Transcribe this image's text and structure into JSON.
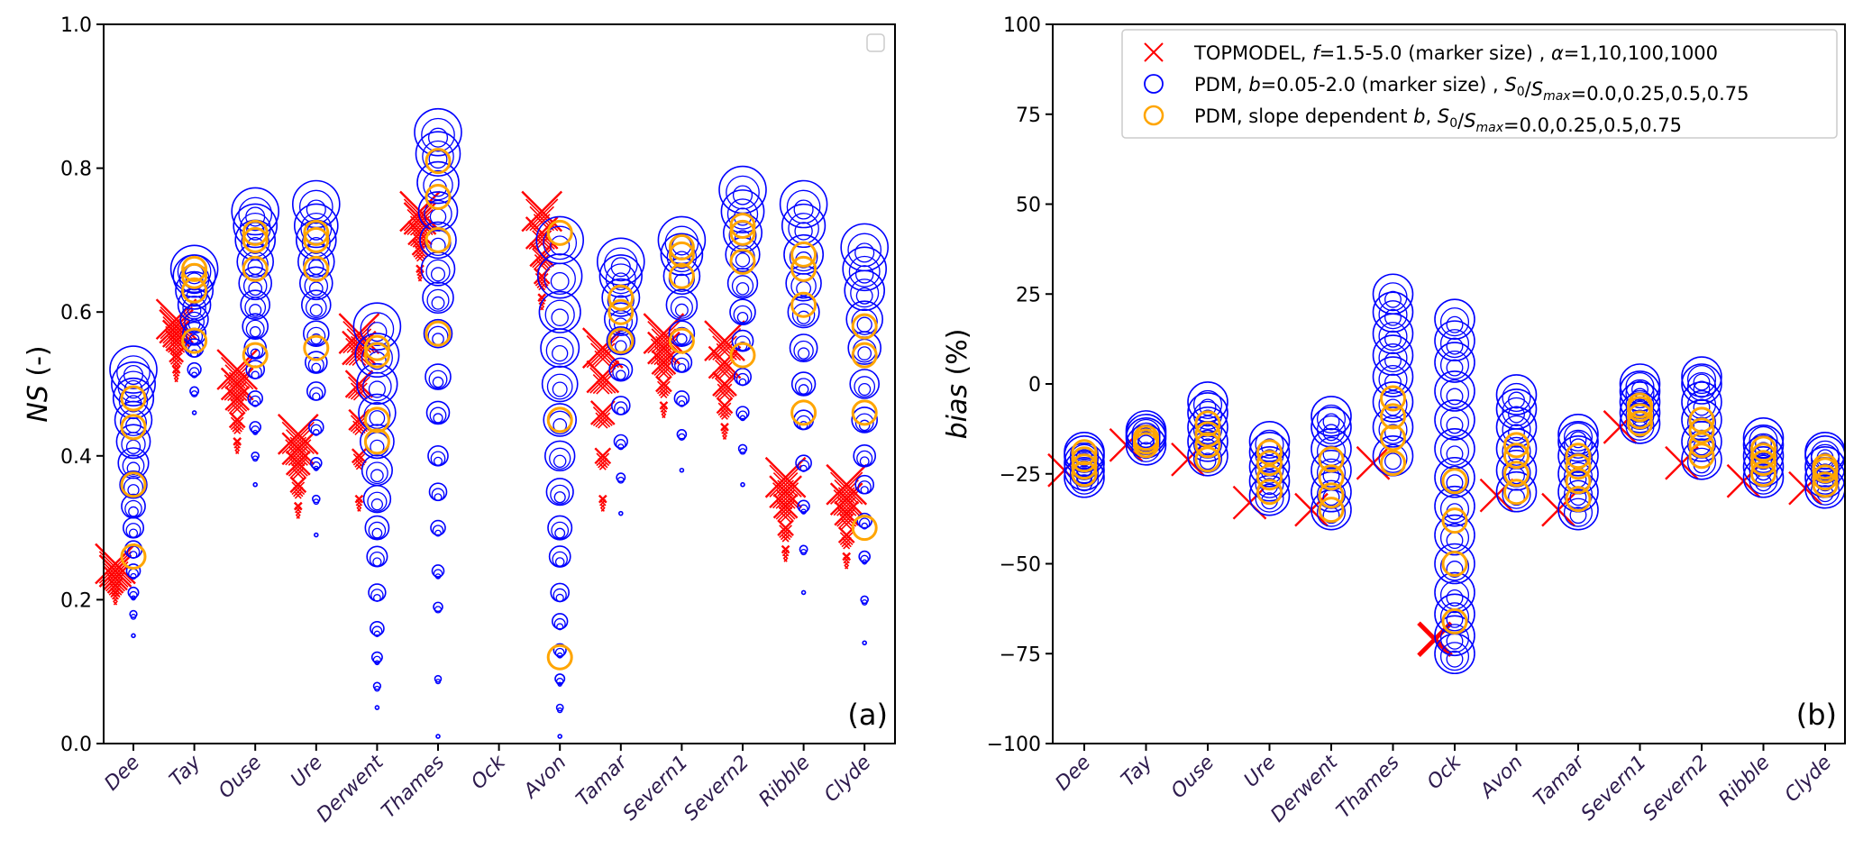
{
  "chart_data": [
    {
      "id": "panel-a",
      "type": "scatter",
      "panel_label": "(a)",
      "ylabel_italic": "NS",
      "ylabel_rest": " (-)",
      "ylim": [
        0.0,
        1.0
      ],
      "yticks": [
        0.0,
        0.2,
        0.4,
        0.6,
        0.8,
        1.0
      ],
      "ytick_labels": [
        "0.0",
        "0.2",
        "0.4",
        "0.6",
        "0.8",
        "1.0"
      ],
      "categories": [
        "Dee",
        "Tay",
        "Ouse",
        "Ure",
        "Derwent",
        "Thames",
        "Ock",
        "Avon",
        "Tamar",
        "Severn1",
        "Severn2",
        "Ribble",
        "Clyde"
      ],
      "legend": "empty-box top-right",
      "series": [
        {
          "name": "TOPMODEL",
          "marker": "x",
          "color": "#ff0000",
          "values_by_category": {
            "Dee": [
              0.21,
              0.22,
              0.23,
              0.24,
              0.25
            ],
            "Tay": [
              0.52,
              0.54,
              0.56,
              0.57,
              0.58,
              0.59
            ],
            "Ouse": [
              0.42,
              0.45,
              0.48,
              0.5,
              0.52
            ],
            "Ure": [
              0.33,
              0.36,
              0.39,
              0.41,
              0.43
            ],
            "Derwent": [
              0.34,
              0.4,
              0.45,
              0.5,
              0.55,
              0.57
            ],
            "Thames": [
              0.66,
              0.69,
              0.71,
              0.73,
              0.74
            ],
            "Ock": [],
            "Avon": [
              0.62,
              0.65,
              0.68,
              0.71,
              0.74
            ],
            "Tamar": [
              0.34,
              0.4,
              0.46,
              0.51,
              0.55
            ],
            "Severn1": [
              0.47,
              0.5,
              0.53,
              0.55,
              0.57
            ],
            "Severn2": [
              0.44,
              0.47,
              0.5,
              0.53,
              0.56
            ],
            "Ribble": [
              0.27,
              0.3,
              0.33,
              0.35,
              0.37
            ],
            "Clyde": [
              0.26,
              0.29,
              0.32,
              0.34,
              0.36
            ]
          }
        },
        {
          "name": "PDM",
          "marker": "o",
          "color": "#0000ff",
          "values_by_category": {
            "Dee": [
              0.15,
              0.18,
              0.21,
              0.24,
              0.27,
              0.3,
              0.33,
              0.36,
              0.39,
              0.42,
              0.45,
              0.48,
              0.5,
              0.52
            ],
            "Tay": [
              0.46,
              0.49,
              0.52,
              0.55,
              0.57,
              0.59,
              0.61,
              0.63,
              0.65,
              0.66
            ],
            "Ouse": [
              0.36,
              0.4,
              0.44,
              0.48,
              0.52,
              0.55,
              0.58,
              0.61,
              0.64,
              0.67,
              0.7,
              0.72,
              0.74
            ],
            "Ure": [
              0.29,
              0.34,
              0.39,
              0.44,
              0.49,
              0.53,
              0.57,
              0.61,
              0.64,
              0.67,
              0.7,
              0.72,
              0.75
            ],
            "Derwent": [
              0.05,
              0.08,
              0.12,
              0.16,
              0.21,
              0.26,
              0.3,
              0.34,
              0.38,
              0.42,
              0.46,
              0.5,
              0.54,
              0.58
            ],
            "Thames": [
              0.01,
              0.09,
              0.19,
              0.24,
              0.3,
              0.35,
              0.4,
              0.46,
              0.51,
              0.57,
              0.62,
              0.66,
              0.7,
              0.74,
              0.78,
              0.82,
              0.85
            ],
            "Ock": [],
            "Avon": [
              0.01,
              0.05,
              0.09,
              0.13,
              0.17,
              0.21,
              0.26,
              0.3,
              0.35,
              0.4,
              0.45,
              0.5,
              0.55,
              0.6,
              0.65,
              0.7
            ],
            "Tamar": [
              0.32,
              0.37,
              0.42,
              0.47,
              0.52,
              0.56,
              0.59,
              0.62,
              0.65,
              0.67
            ],
            "Severn1": [
              0.38,
              0.43,
              0.48,
              0.53,
              0.57,
              0.61,
              0.65,
              0.68,
              0.7
            ],
            "Severn2": [
              0.36,
              0.41,
              0.46,
              0.51,
              0.56,
              0.6,
              0.64,
              0.68,
              0.71,
              0.74,
              0.77
            ],
            "Ribble": [
              0.21,
              0.27,
              0.33,
              0.39,
              0.45,
              0.5,
              0.55,
              0.6,
              0.64,
              0.68,
              0.72,
              0.75
            ],
            "Clyde": [
              0.14,
              0.2,
              0.26,
              0.31,
              0.36,
              0.4,
              0.45,
              0.5,
              0.55,
              0.59,
              0.63,
              0.66,
              0.69
            ]
          }
        },
        {
          "name": "PDM slope dependent b",
          "marker": "o",
          "color": "#ffa500",
          "values_by_category": {
            "Dee": [
              0.26,
              0.36,
              0.44,
              0.48
            ],
            "Tay": [
              0.56,
              0.63,
              0.65,
              0.66
            ],
            "Ouse": [
              0.54,
              0.66,
              0.7,
              0.71
            ],
            "Ure": [
              0.55,
              0.66,
              0.7,
              0.71
            ],
            "Derwent": [
              0.42,
              0.45,
              0.54,
              0.55
            ],
            "Thames": [
              0.57,
              0.7,
              0.76,
              0.81
            ],
            "Ock": [],
            "Avon": [
              0.12,
              0.45,
              0.71
            ],
            "Tamar": [
              0.56,
              0.6,
              0.62,
              0.62
            ],
            "Severn1": [
              0.56,
              0.65,
              0.68,
              0.69
            ],
            "Severn2": [
              0.54,
              0.67,
              0.71,
              0.72
            ],
            "Ribble": [
              0.46,
              0.61,
              0.66,
              0.68
            ],
            "Clyde": [
              0.3,
              0.46,
              0.54,
              0.58
            ]
          }
        }
      ]
    },
    {
      "id": "panel-b",
      "type": "scatter",
      "panel_label": "(b)",
      "ylabel_italic": "bias",
      "ylabel_rest": " (%)",
      "ylim": [
        -100,
        100
      ],
      "yticks": [
        -100,
        -75,
        -50,
        -25,
        0,
        25,
        50,
        75,
        100
      ],
      "ytick_labels": [
        "−100",
        "−75",
        "−50",
        "−25",
        "0",
        "25",
        "50",
        "75",
        "100"
      ],
      "categories": [
        "Dee",
        "Tay",
        "Ouse",
        "Ure",
        "Derwent",
        "Thames",
        "Ock",
        "Avon",
        "Tamar",
        "Severn1",
        "Severn2",
        "Ribble",
        "Clyde"
      ],
      "legend": "top-right",
      "series": [
        {
          "name": "TOPMODEL",
          "marker": "x",
          "color": "#ff0000",
          "values_by_category": {
            "Dee": [
              -24
            ],
            "Tay": [
              -17
            ],
            "Ouse": [
              -21
            ],
            "Ure": [
              -33
            ],
            "Derwent": [
              -35
            ],
            "Thames": [
              -22
            ],
            "Ock": [
              -71
            ],
            "Avon": [
              -31
            ],
            "Tamar": [
              -35
            ],
            "Severn1": [
              -12
            ],
            "Severn2": [
              -22
            ],
            "Ribble": [
              -27
            ],
            "Clyde": [
              -29
            ]
          }
        },
        {
          "name": "PDM",
          "marker": "o",
          "color": "#0000ff",
          "values_by_category": {
            "Dee": [
              -26,
              -24,
              -22,
              -20,
              -19
            ],
            "Tay": [
              -17,
              -15,
              -14,
              -13
            ],
            "Ouse": [
              -20,
              -16,
              -12,
              -8,
              -5
            ],
            "Ure": [
              -31,
              -27,
              -23,
              -19,
              -16
            ],
            "Derwent": [
              -35,
              -30,
              -24,
              -18,
              -12,
              -9
            ],
            "Thames": [
              -20,
              -12,
              -5,
              2,
              8,
              14,
              20,
              25
            ],
            "Ock": [
              -75,
              -70,
              -64,
              -58,
              -50,
              -42,
              -34,
              -26,
              -18,
              -10,
              -2,
              6,
              12,
              18
            ],
            "Avon": [
              -30,
              -24,
              -18,
              -12,
              -7,
              -3
            ],
            "Tamar": [
              -35,
              -30,
              -25,
              -20,
              -16,
              -14
            ],
            "Severn1": [
              -11,
              -8,
              -5,
              -2,
              0
            ],
            "Severn2": [
              -21,
              -16,
              -10,
              -5,
              0,
              2
            ],
            "Ribble": [
              -26,
              -23,
              -20,
              -17,
              -15
            ],
            "Clyde": [
              -29,
              -26,
              -23,
              -20,
              -19
            ]
          }
        },
        {
          "name": "PDM slope dependent b",
          "marker": "o",
          "color": "#ffa500",
          "values_by_category": {
            "Dee": [
              -25,
              -23,
              -21,
              -19
            ],
            "Tay": [
              -17,
              -16,
              -15,
              -15
            ],
            "Ouse": [
              -21,
              -17,
              -14,
              -11
            ],
            "Ure": [
              -30,
              -26,
              -22,
              -19
            ],
            "Derwent": [
              -35,
              -31,
              -26,
              -21
            ],
            "Thames": [
              -22,
              -15,
              -9,
              -4
            ],
            "Ock": [
              -66,
              -50,
              -38,
              -27
            ],
            "Avon": [
              -30,
              -25,
              -20,
              -17
            ],
            "Tamar": [
              -32,
              -27,
              -23,
              -20
            ],
            "Severn1": [
              -11,
              -9,
              -7,
              -6
            ],
            "Severn2": [
              -20,
              -17,
              -13,
              -10
            ],
            "Ribble": [
              -25,
              -22,
              -20,
              -18
            ],
            "Clyde": [
              -28,
              -26,
              -24,
              -23
            ]
          }
        }
      ],
      "legend_entries": [
        {
          "marker": "x",
          "color": "#ff0000",
          "pre": "TOPMODEL, ",
          "italic1": "f",
          "mid1": "=1.5-5.0 (marker size) , ",
          "italic2": "α",
          "mid2": "=1,10,100,1000",
          "sub": "",
          "sub2": "",
          "post": ""
        },
        {
          "marker": "o",
          "color": "#0000ff",
          "pre": "PDM, ",
          "italic1": "b",
          "mid1": "=0.05-2.0 (marker size) , ",
          "italic2": "S",
          "sub": "0",
          "mid2": "/",
          "italic3": "S",
          "sub2": "max",
          "post": "=0.0,0.25,0.5,0.75"
        },
        {
          "marker": "o",
          "color": "#ffa500",
          "pre": "PDM, slope dependent ",
          "italic1": "b",
          "mid1": ", ",
          "italic2": "S",
          "sub": "0",
          "mid2": "/",
          "italic3": "S",
          "sub2": "max",
          "post": "=0.0,0.25,0.5,0.75"
        }
      ]
    }
  ]
}
